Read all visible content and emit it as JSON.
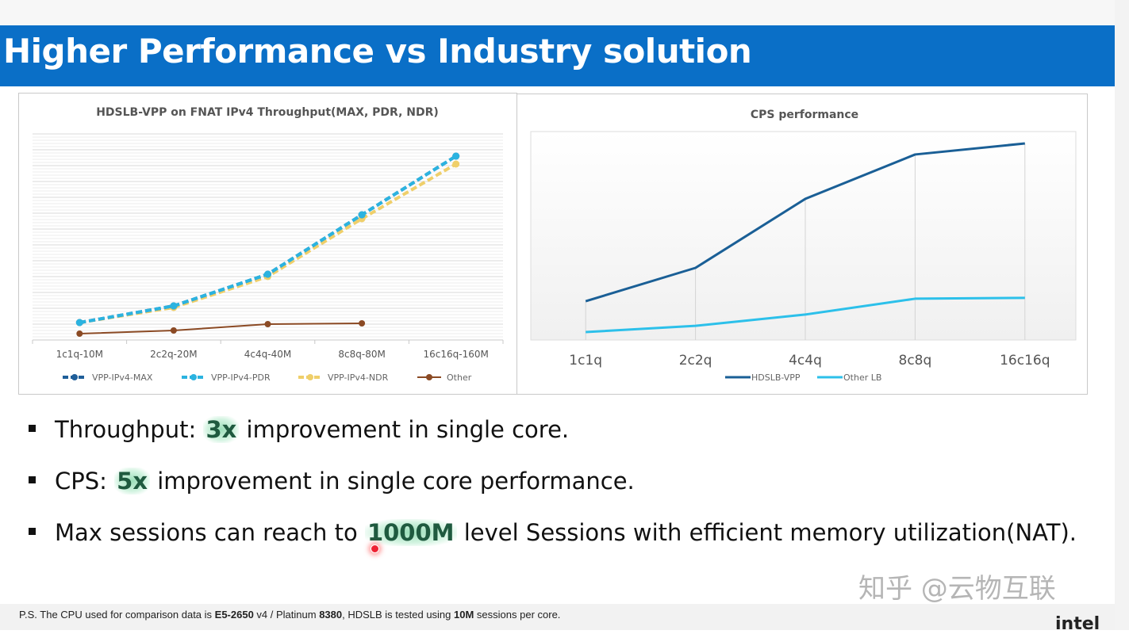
{
  "slide": {
    "title": "Higher Performance vs Industry solution",
    "bullets": [
      {
        "before": "Throughput: ",
        "highlight": "3x",
        "after": " improvement in single core."
      },
      {
        "before": "CPS: ",
        "highlight": "5x",
        "after": " improvement in single core performance."
      },
      {
        "before": "Max sessions can reach to ",
        "highlight": "1000M",
        "after": " level Sessions with efficient memory utilization(NAT)."
      }
    ],
    "footnote": {
      "p1": "P.S. The CPU used for comparison data is ",
      "b1": "E5-2650",
      "p2": " v4 / Platinum ",
      "b2": "8380",
      "p3": ", HDSLB is tested using ",
      "b3": "10M",
      "p4": " sessions per core."
    },
    "logo": "intel",
    "watermark": "知乎 @云物互联",
    "banner_color": "#0a6fc7"
  },
  "chart_data": [
    {
      "type": "line",
      "title": "HDSLB-VPP on FNAT IPv4 Throughput(MAX, PDR, NDR)",
      "categories": [
        "1c1q-10M",
        "2c2q-20M",
        "4c4q-40M",
        "8c8q-80M",
        "16c16q-160M"
      ],
      "ylim": [
        0,
        13
      ],
      "grid": true,
      "legend": "bottom",
      "series": [
        {
          "name": "VPP-IPv4-MAX",
          "values": [
            1.1,
            2.15,
            4.15,
            7.9,
            11.6
          ],
          "color": "#1f5f99",
          "dashed": true
        },
        {
          "name": "VPP-IPv4-PDR",
          "values": [
            1.1,
            2.15,
            4.15,
            7.9,
            11.6
          ],
          "color": "#2bb3e0",
          "dashed": true
        },
        {
          "name": "VPP-IPv4-NDR",
          "values": [
            1.1,
            2.05,
            4.0,
            7.65,
            11.1
          ],
          "color": "#efcf6a",
          "dashed": true
        },
        {
          "name": "Other",
          "values": [
            0.4,
            0.6,
            1.0,
            1.05,
            null
          ],
          "color": "#8b4a24",
          "dashed": false
        }
      ]
    },
    {
      "type": "line",
      "title": "CPS performance",
      "categories": [
        "1c1q",
        "2c2q",
        "4c4q",
        "8c8q",
        "16c16q"
      ],
      "ylim": [
        0,
        100
      ],
      "grid": false,
      "legend": "bottom",
      "series": [
        {
          "name": "HDSLB-VPP",
          "values": [
            18.6,
            34.6,
            67.7,
            89,
            94.3
          ],
          "color": "#1a5f96"
        },
        {
          "name": "Other LB",
          "values": [
            3.8,
            6.8,
            12.2,
            19.8,
            20.2
          ],
          "color": "#2cc0ea"
        }
      ]
    }
  ]
}
